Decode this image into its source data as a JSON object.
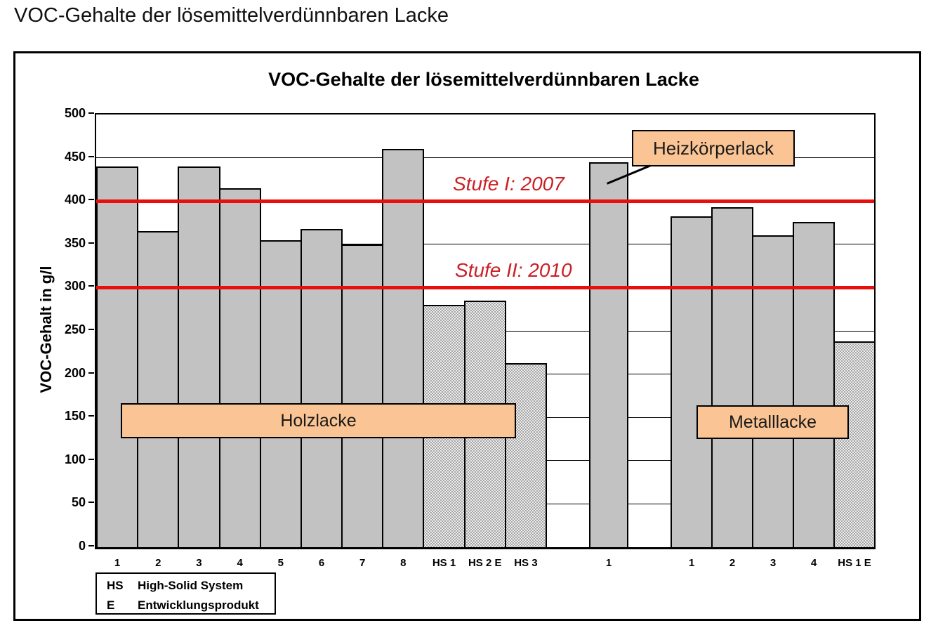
{
  "page": {
    "title": "VOC-Gehalte der lösemittelverdünnbaren Lacke"
  },
  "chart_data": {
    "type": "bar",
    "title": "VOC-Gehalte der lösemittelverdünnbaren Lacke",
    "ylabel": "VOC-Gehalt in g/l",
    "xlabel": "",
    "ylim": [
      0,
      500
    ],
    "ytick_step": 50,
    "grid": "horizontal gridlines every 50",
    "legend_position": "bottom-left",
    "reference_lines": [
      {
        "label": "Stufe I: 2007",
        "value": 400
      },
      {
        "label": "Stufe II: 2010",
        "value": 300
      }
    ],
    "groups": [
      {
        "name": "Holzlacke",
        "bars": [
          {
            "label": "1",
            "value": 440,
            "style": "solid"
          },
          {
            "label": "2",
            "value": 365,
            "style": "solid"
          },
          {
            "label": "3",
            "value": 440,
            "style": "solid"
          },
          {
            "label": "4",
            "value": 415,
            "style": "solid"
          },
          {
            "label": "5",
            "value": 355,
            "style": "solid"
          },
          {
            "label": "6",
            "value": 368,
            "style": "solid"
          },
          {
            "label": "7",
            "value": 350,
            "style": "solid"
          },
          {
            "label": "8",
            "value": 460,
            "style": "solid"
          },
          {
            "label": "HS 1",
            "value": 280,
            "style": "dotted"
          },
          {
            "label": "HS 2 E",
            "value": 285,
            "style": "dotted"
          },
          {
            "label": "HS 3",
            "value": 213,
            "style": "dotted"
          }
        ]
      },
      {
        "name": "Heizkörperlack",
        "bars": [
          {
            "label": "1",
            "value": 445,
            "style": "solid"
          }
        ]
      },
      {
        "name": "Metalllacke",
        "bars": [
          {
            "label": "1",
            "value": 382,
            "style": "solid"
          },
          {
            "label": "2",
            "value": 393,
            "style": "solid"
          },
          {
            "label": "3",
            "value": 360,
            "style": "solid"
          },
          {
            "label": "4",
            "value": 376,
            "style": "solid"
          },
          {
            "label": "HS 1 E",
            "value": 238,
            "style": "dotted"
          }
        ]
      }
    ],
    "legend": {
      "rows": [
        {
          "abbr": "HS",
          "text": "High-Solid System"
        },
        {
          "abbr": "E",
          "text": "Entwicklungsprodukt"
        }
      ]
    },
    "colors": {
      "bar_fill": "#C2C2C2",
      "bar_border": "#000000",
      "dotted_fill": "#EDEDED",
      "dotted_dot": "#8F8F8F",
      "callout_fill": "#FAC494",
      "reference_line": "#EB0E0E",
      "reference_text": "#CB1F26"
    }
  }
}
